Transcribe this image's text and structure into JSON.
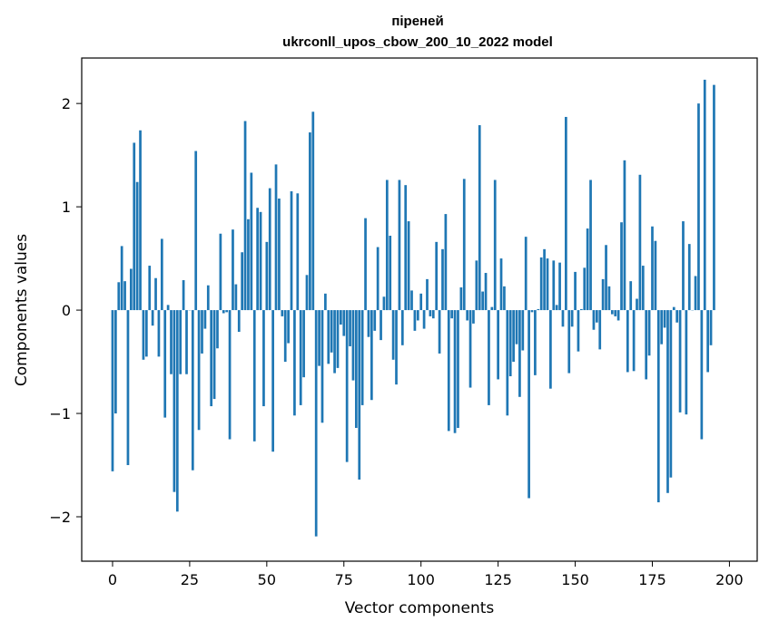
{
  "chart_data": {
    "type": "bar",
    "title_line1": "піреней",
    "title_line2": "ukrconll_upos_cbow_200_10_2022 model",
    "xlabel": "Vector components",
    "ylabel": "Components values",
    "xlim": [
      -10,
      209
    ],
    "ylim": [
      -2.43,
      2.44
    ],
    "xticks": [
      0,
      25,
      50,
      75,
      100,
      125,
      150,
      175,
      200
    ],
    "yticks": [
      -2,
      -1,
      0,
      1,
      2
    ],
    "ytick_labels": [
      "−2",
      "−1",
      "0",
      "1",
      "2"
    ],
    "grid": false,
    "bar_color": "#1f77b4",
    "values": [
      -1.56,
      -1.0,
      0.27,
      0.62,
      0.28,
      -1.5,
      0.4,
      1.62,
      1.24,
      1.74,
      -0.48,
      -0.45,
      0.43,
      -0.15,
      0.31,
      -0.45,
      0.69,
      -1.04,
      0.05,
      -0.62,
      -1.76,
      -1.95,
      -0.62,
      0.29,
      -0.62,
      0.0,
      -1.55,
      1.54,
      -1.16,
      -0.42,
      -0.18,
      0.24,
      -0.93,
      -0.86,
      -0.37,
      0.74,
      -0.03,
      -0.02,
      -1.25,
      0.78,
      0.25,
      -0.21,
      0.56,
      1.83,
      0.88,
      1.33,
      -1.27,
      0.99,
      0.95,
      -0.93,
      0.66,
      1.18,
      -1.37,
      1.41,
      1.08,
      -0.06,
      -0.5,
      -0.32,
      1.15,
      -1.02,
      1.13,
      -0.92,
      -0.65,
      0.34,
      1.72,
      1.92,
      -2.19,
      -0.54,
      -1.09,
      0.16,
      -0.52,
      -0.41,
      -0.61,
      -0.56,
      -0.14,
      -0.25,
      -1.47,
      -0.35,
      -0.68,
      -1.14,
      -1.64,
      -0.92,
      0.89,
      -0.26,
      -0.87,
      -0.2,
      0.61,
      -0.29,
      0.13,
      1.26,
      0.72,
      -0.48,
      -0.72,
      1.26,
      -0.34,
      1.21,
      0.86,
      0.19,
      -0.2,
      -0.1,
      0.16,
      -0.18,
      0.3,
      -0.06,
      -0.08,
      0.66,
      -0.42,
      0.59,
      0.93,
      -1.17,
      -0.08,
      -1.19,
      -1.14,
      0.22,
      1.27,
      -0.1,
      -0.75,
      -0.13,
      0.48,
      1.79,
      0.18,
      0.36,
      -0.92,
      0.03,
      1.26,
      -0.67,
      0.5,
      0.23,
      -1.02,
      -0.64,
      -0.5,
      -0.33,
      -0.84,
      -0.39,
      0.71,
      -1.82,
      -0.02,
      -0.63,
      0.01,
      0.51,
      0.59,
      0.5,
      -0.76,
      0.48,
      0.05,
      0.46,
      -0.16,
      1.87,
      -0.61,
      -0.16,
      0.37,
      -0.4,
      0.01,
      0.41,
      0.79,
      1.26,
      -0.19,
      -0.12,
      -0.38,
      0.3,
      0.63,
      0.23,
      -0.04,
      -0.06,
      -0.1,
      0.85,
      1.45,
      -0.6,
      0.28,
      -0.59,
      0.11,
      1.31,
      0.43,
      -0.67,
      -0.44,
      0.81,
      0.67,
      -1.86,
      -0.33,
      -0.17,
      -1.77,
      -1.62,
      0.03,
      -0.12,
      -0.99,
      0.86,
      -1.01,
      0.64,
      0.0,
      0.33,
      2.0,
      -1.25,
      2.23,
      -0.6,
      -0.34,
      2.18
    ]
  }
}
